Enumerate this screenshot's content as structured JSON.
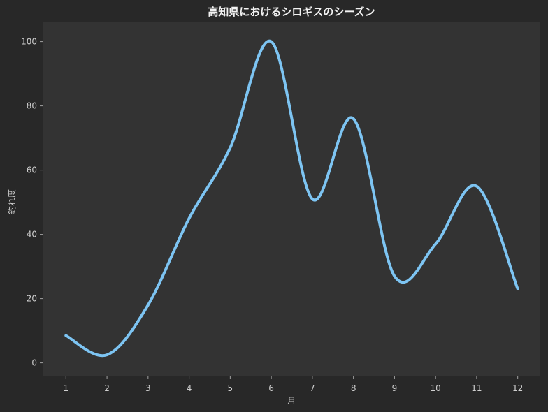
{
  "chart_data": {
    "type": "line",
    "title": "高知県におけるシロギスのシーズン",
    "xlabel": "月",
    "ylabel": "釣れ度",
    "x": [
      1,
      2,
      3,
      4,
      5,
      6,
      7,
      8,
      9,
      10,
      11,
      12
    ],
    "series": [
      {
        "values": [
          8.5,
          2.5,
          18,
          45,
          67,
          100,
          51,
          76,
          27,
          37,
          55,
          23
        ]
      }
    ],
    "xlim": [
      0.45,
      12.55
    ],
    "ylim": [
      -4,
      106
    ],
    "yticks": [
      0,
      20,
      40,
      60,
      80,
      100
    ],
    "grid": false,
    "smooth": true,
    "colors": {
      "background": "#282828",
      "plot_area": "#333333",
      "line": "#7dc4f2",
      "text": "#d0d0d0",
      "title": "#f2f2f2",
      "tick": "#a0a0a0"
    }
  }
}
